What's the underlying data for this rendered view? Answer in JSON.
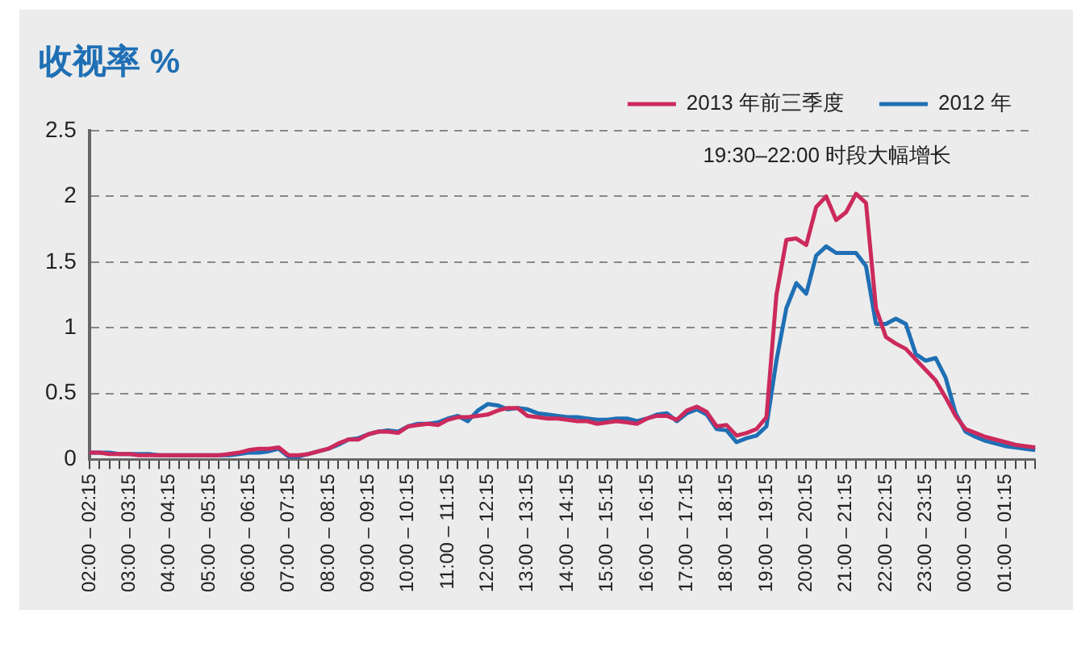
{
  "chart_data": {
    "type": "line",
    "title": "收视率 %",
    "categories": [
      "02:00 – 02:15",
      null,
      null,
      null,
      "03:00 – 03:15",
      null,
      null,
      null,
      "04:00 – 04:15",
      null,
      null,
      null,
      "05:00 – 05:15",
      null,
      null,
      null,
      "06:00 – 06:15",
      null,
      null,
      null,
      "07:00 – 07:15",
      null,
      null,
      null,
      "08:00 – 08:15",
      null,
      null,
      null,
      "09:00 – 09:15",
      null,
      null,
      null,
      "10:00 – 10:15",
      null,
      null,
      null,
      "11:00 – 11:15",
      null,
      null,
      null,
      "12:00 – 12:15",
      null,
      null,
      null,
      "13:00 – 13:15",
      null,
      null,
      null,
      "14:00 – 14:15",
      null,
      null,
      null,
      "15:00 – 15:15",
      null,
      null,
      null,
      "16:00 – 16:15",
      null,
      null,
      null,
      "17:00 – 17:15",
      null,
      null,
      null,
      "18:00 – 18:15",
      null,
      null,
      null,
      "19:00 – 19:15",
      null,
      null,
      null,
      "20:00 – 20:15",
      null,
      null,
      null,
      "21:00 – 21:15",
      null,
      null,
      null,
      "22:00 – 22:15",
      null,
      null,
      null,
      "23:00 – 23:15",
      null,
      null,
      null,
      "00:00 – 00:15",
      null,
      null,
      null,
      "01:00 – 01:15",
      null,
      null,
      null
    ],
    "series": [
      {
        "name": "2013 年前三季度",
        "color": "#cc2a5c",
        "values": [
          0.05,
          0.05,
          0.04,
          0.04,
          0.04,
          0.03,
          0.03,
          0.03,
          0.03,
          0.03,
          0.03,
          0.03,
          0.03,
          0.03,
          0.04,
          0.05,
          0.07,
          0.08,
          0.08,
          0.09,
          0.03,
          0.03,
          0.04,
          0.06,
          0.08,
          0.12,
          0.15,
          0.15,
          0.19,
          0.21,
          0.21,
          0.2,
          0.25,
          0.26,
          0.27,
          0.26,
          0.3,
          0.32,
          0.32,
          0.33,
          0.34,
          0.37,
          0.39,
          0.39,
          0.33,
          0.32,
          0.31,
          0.31,
          0.3,
          0.29,
          0.29,
          0.27,
          0.28,
          0.29,
          0.28,
          0.27,
          0.31,
          0.33,
          0.33,
          0.3,
          0.37,
          0.4,
          0.36,
          0.25,
          0.26,
          0.18,
          0.2,
          0.23,
          0.32,
          1.25,
          1.67,
          1.68,
          1.63,
          1.92,
          2.0,
          1.82,
          1.88,
          2.02,
          1.95,
          1.15,
          0.93,
          0.88,
          0.84,
          0.76,
          0.68,
          0.6,
          0.47,
          0.33,
          0.23,
          0.2,
          0.17,
          0.15,
          0.13,
          0.11,
          0.1,
          0.09
        ]
      },
      {
        "name": "2012 年",
        "color": "#1f6fb4",
        "values": [
          0.05,
          0.05,
          0.05,
          0.04,
          0.04,
          0.04,
          0.04,
          0.03,
          0.03,
          0.03,
          0.03,
          0.03,
          0.03,
          0.03,
          0.03,
          0.04,
          0.05,
          0.05,
          0.06,
          0.08,
          0.02,
          0.02,
          0.04,
          0.06,
          0.08,
          0.11,
          0.15,
          0.16,
          0.19,
          0.21,
          0.22,
          0.21,
          0.25,
          0.27,
          0.27,
          0.28,
          0.31,
          0.33,
          0.29,
          0.37,
          0.42,
          0.41,
          0.38,
          0.39,
          0.38,
          0.35,
          0.34,
          0.33,
          0.32,
          0.32,
          0.31,
          0.3,
          0.3,
          0.31,
          0.31,
          0.29,
          0.31,
          0.34,
          0.35,
          0.29,
          0.35,
          0.38,
          0.34,
          0.23,
          0.22,
          0.13,
          0.16,
          0.18,
          0.25,
          0.75,
          1.15,
          1.34,
          1.26,
          1.55,
          1.62,
          1.57,
          1.57,
          1.57,
          1.47,
          1.03,
          1.03,
          1.07,
          1.03,
          0.8,
          0.75,
          0.77,
          0.62,
          0.35,
          0.21,
          0.17,
          0.14,
          0.12,
          0.1,
          0.09,
          0.08,
          0.07
        ]
      }
    ],
    "ylim": [
      0,
      2.5
    ],
    "yticks": [
      0,
      0.5,
      1,
      1.5,
      2,
      2.5
    ],
    "grid": "y",
    "legend": "top right",
    "marker": "none",
    "line_style": "solid",
    "annotations": [
      "19:30–22:00 时段大幅增长"
    ]
  }
}
